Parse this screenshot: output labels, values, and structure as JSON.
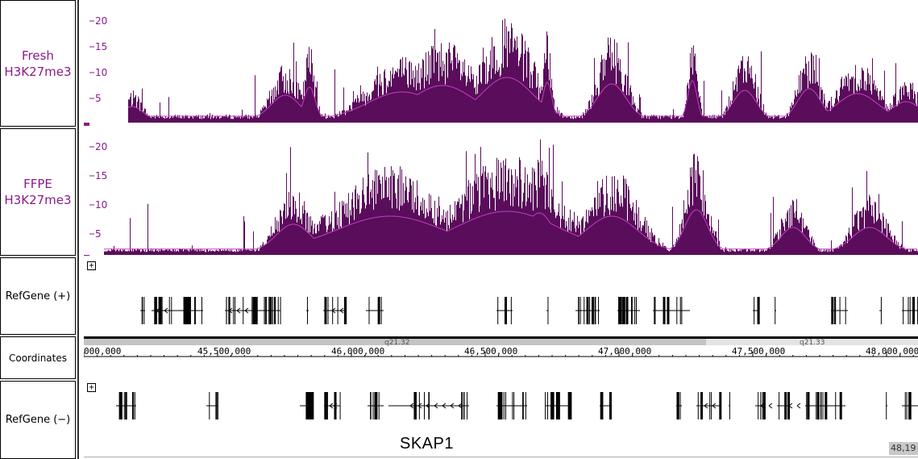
{
  "tracks": {
    "fresh": {
      "label_line1": "Fresh",
      "label_line2": "H3K27me3",
      "ticks": [
        "20",
        "15",
        "10",
        "5"
      ]
    },
    "ffpe": {
      "label_line1": "FFPE",
      "label_line2": "H3K27me3",
      "ticks": [
        "20",
        "15",
        "10",
        "5"
      ]
    },
    "refgene_plus": {
      "label": "RefGene (+)",
      "expand_glyph": "+"
    },
    "coordinates": {
      "label": "Coordinates",
      "ticks": [
        "000,000",
        "45,500,000",
        "46,000,000",
        "46,500,000",
        "47,000,000",
        "47,500,000",
        "48,000,000"
      ],
      "bands": [
        "q21.32",
        "q21.33"
      ]
    },
    "refgene_minus": {
      "label": "RefGene (−)",
      "expand_glyph": "+"
    }
  },
  "gene_label": "SKAP1",
  "coord_readout": "48,19",
  "colors": {
    "signal_dark": "#5a0d5a",
    "signal_line": "#c040c0",
    "label": "#8a1a8a"
  }
}
